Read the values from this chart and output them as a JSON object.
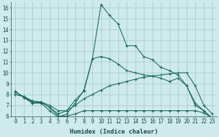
{
  "xlabel": "Humidex (Indice chaleur)",
  "bg_color": "#ceeaea",
  "grid_color": "#aacccc",
  "line_color": "#1a6a5a",
  "xlim": [
    -0.5,
    23.5
  ],
  "ylim": [
    6,
    16.5
  ],
  "yticks": [
    6,
    7,
    8,
    9,
    10,
    11,
    12,
    13,
    14,
    15,
    16
  ],
  "xticks": [
    0,
    1,
    2,
    3,
    4,
    5,
    6,
    7,
    8,
    9,
    10,
    11,
    12,
    13,
    14,
    15,
    16,
    17,
    18,
    19,
    20,
    21,
    22,
    23
  ],
  "lines": [
    {
      "x": [
        0,
        1,
        2,
        3,
        4,
        5,
        6,
        7,
        8,
        9,
        10,
        11,
        12,
        13,
        14,
        15,
        16,
        17,
        18,
        19,
        20,
        21,
        22,
        23
      ],
      "y": [
        8.3,
        7.7,
        7.2,
        7.2,
        6.5,
        5.9,
        6.2,
        7.2,
        8.4,
        11.3,
        16.3,
        15.3,
        14.5,
        12.5,
        12.5,
        11.5,
        11.2,
        10.5,
        10.2,
        9.8,
        8.8,
        7.2,
        6.5,
        5.8
      ]
    },
    {
      "x": [
        0,
        1,
        2,
        3,
        4,
        5,
        6,
        7,
        8,
        9,
        10,
        11,
        12,
        13,
        14,
        15,
        16,
        17,
        18,
        19,
        20,
        21,
        22,
        23
      ],
      "y": [
        8.2,
        7.8,
        7.3,
        7.3,
        6.8,
        6.2,
        6.5,
        7.5,
        8.3,
        11.3,
        11.5,
        11.3,
        10.8,
        10.2,
        10.0,
        9.8,
        9.7,
        9.5,
        9.2,
        9.5,
        8.8,
        7.0,
        6.5,
        5.8
      ]
    },
    {
      "x": [
        0,
        1,
        2,
        3,
        4,
        5,
        6,
        7,
        8,
        9,
        10,
        11,
        12,
        13,
        14,
        15,
        16,
        17,
        18,
        19,
        20,
        21,
        22,
        23
      ],
      "y": [
        8.0,
        7.8,
        7.4,
        7.3,
        7.0,
        6.5,
        6.5,
        7.0,
        7.6,
        8.0,
        8.4,
        8.8,
        9.0,
        9.2,
        9.4,
        9.6,
        9.7,
        9.8,
        9.9,
        10.0,
        10.0,
        8.8,
        7.0,
        6.2
      ]
    },
    {
      "x": [
        0,
        1,
        2,
        3,
        4,
        5,
        6,
        7,
        8,
        9,
        10,
        11,
        12,
        13,
        14,
        15,
        16,
        17,
        18,
        19,
        20,
        21,
        22,
        23
      ],
      "y": [
        8.0,
        7.8,
        7.2,
        7.3,
        6.8,
        6.0,
        6.0,
        6.2,
        6.5,
        6.5,
        6.5,
        6.5,
        6.5,
        6.5,
        6.5,
        6.5,
        6.5,
        6.5,
        6.5,
        6.5,
        6.5,
        6.5,
        6.3,
        5.8
      ]
    }
  ]
}
